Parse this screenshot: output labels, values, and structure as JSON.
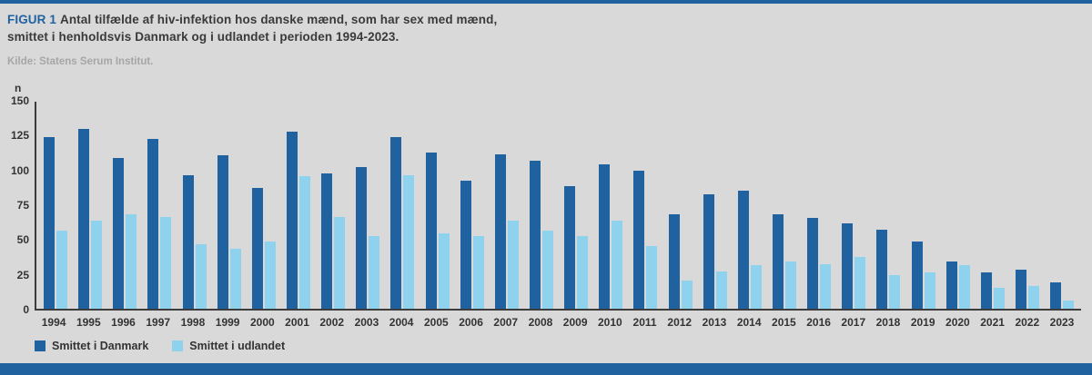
{
  "header": {
    "figure_label": "FIGUR 1",
    "title_line1": "Antal tilfælde af hiv-infektion hos danske mænd, som har sex med mænd,",
    "title_line2": "smittet i henholdsvis Danmark og i udlandet i perioden 1994-2023.",
    "source": "Kilde: Statens Serum Institut."
  },
  "colors": {
    "accent": "#1f629f",
    "background": "#d9d9d9",
    "series_danmark": "#1f629f",
    "series_udlandet": "#8ed2ee"
  },
  "chart_data": {
    "type": "bar",
    "title": "FIGUR 1 Antal tilfælde af hiv-infektion hos danske mænd, som har sex med mænd, smittet i henholdsvis Danmark og i udlandet i perioden 1994-2023.",
    "ylabel": "n",
    "xlabel": "",
    "ylim": [
      0,
      150
    ],
    "yticks": [
      0,
      25,
      50,
      75,
      100,
      125,
      150
    ],
    "grid": false,
    "legend_position": "bottom-left",
    "categories": [
      "1994",
      "1995",
      "1996",
      "1997",
      "1998",
      "1999",
      "2000",
      "2001",
      "2002",
      "2003",
      "2004",
      "2005",
      "2006",
      "2007",
      "2008",
      "2009",
      "2010",
      "2011",
      "2012",
      "2013",
      "2014",
      "2015",
      "2016",
      "2017",
      "2018",
      "2019",
      "2020",
      "2021",
      "2022",
      "2023"
    ],
    "series": [
      {
        "name": "Smittet i Danmark",
        "color": "#1f629f",
        "values": [
          123,
          129,
          108,
          122,
          96,
          110,
          87,
          127,
          97,
          102,
          123,
          112,
          92,
          111,
          106,
          88,
          104,
          99,
          68,
          82,
          85,
          68,
          65,
          61,
          57,
          48,
          34,
          26,
          28,
          19
        ]
      },
      {
        "name": "Smittet i udlandet",
        "color": "#8ed2ee",
        "values": [
          56,
          63,
          68,
          66,
          46,
          43,
          48,
          95,
          66,
          52,
          96,
          54,
          52,
          63,
          56,
          52,
          63,
          45,
          20,
          27,
          31,
          34,
          32,
          37,
          24,
          26,
          31,
          15,
          16,
          6
        ]
      }
    ]
  }
}
